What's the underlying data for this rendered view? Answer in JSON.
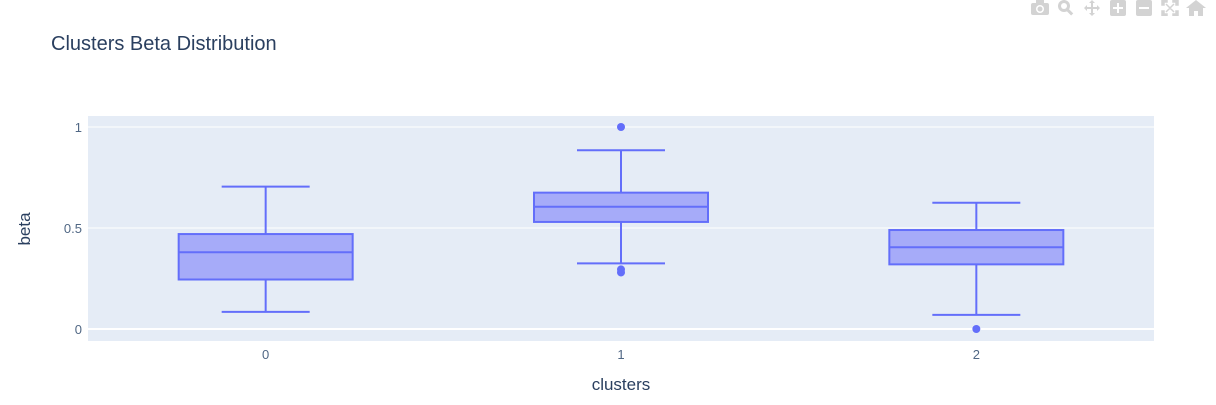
{
  "chart_data": {
    "type": "box",
    "title": "Clusters Beta Distribution",
    "xlabel": "clusters",
    "ylabel": "beta",
    "categories": [
      "0",
      "1",
      "2"
    ],
    "yticks": [
      0,
      0.5,
      1
    ],
    "ytick_labels": [
      "0",
      "0.5",
      "1"
    ],
    "ylim": [
      -0.05,
      1.07
    ],
    "grid": true,
    "boxes": [
      {
        "category": "0",
        "lowerfence": 0.085,
        "q1": 0.245,
        "median": 0.38,
        "q3": 0.47,
        "upperfence": 0.705,
        "outliers": []
      },
      {
        "category": "1",
        "lowerfence": 0.325,
        "q1": 0.53,
        "median": 0.605,
        "q3": 0.675,
        "upperfence": 0.885,
        "outliers": [
          1.0,
          0.295,
          0.28
        ]
      },
      {
        "category": "2",
        "lowerfence": 0.07,
        "q1": 0.32,
        "median": 0.405,
        "q3": 0.49,
        "upperfence": 0.625,
        "outliers": [
          0.0
        ]
      }
    ],
    "colors": {
      "line": "#636efa",
      "fill": "#a6abf9",
      "plot_bg": "#e5ecf6",
      "grid": "#ffffff",
      "text": "#2a3f5f",
      "tick": "#506784"
    }
  },
  "modebar": {
    "buttons": [
      "camera-icon",
      "zoom-icon",
      "pan-icon",
      "zoom-in-icon",
      "zoom-out-icon",
      "autoscale-icon",
      "home-icon"
    ]
  }
}
